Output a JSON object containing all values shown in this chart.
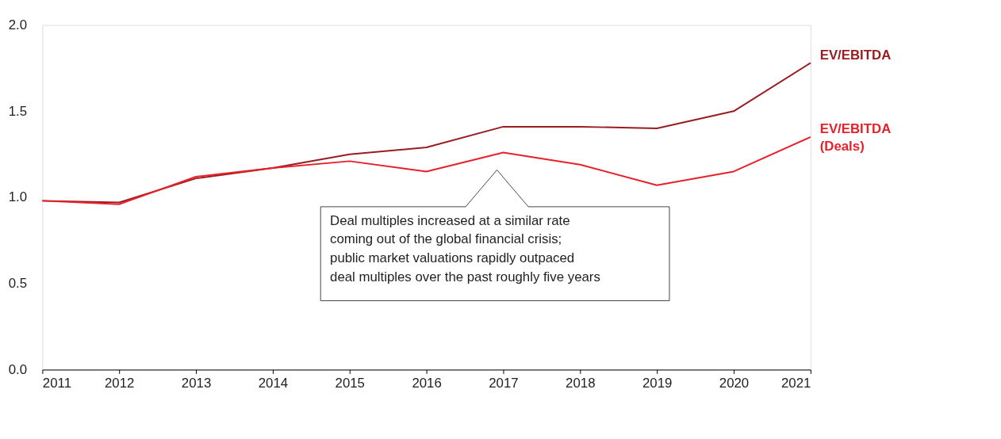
{
  "chart_data": {
    "type": "line",
    "categories": [
      "2011",
      "2012",
      "2013",
      "2014",
      "2015",
      "2016",
      "2017",
      "2018",
      "2019",
      "2020",
      "2021"
    ],
    "series": [
      {
        "name": "EV/EBITDA",
        "color": "#9b1c20",
        "values": [
          0.98,
          0.97,
          1.11,
          1.17,
          1.25,
          1.29,
          1.41,
          1.41,
          1.4,
          1.5,
          1.78
        ]
      },
      {
        "name": "EV/EBITDA (Deals)",
        "color": "#e8202a",
        "values": [
          0.98,
          0.96,
          1.12,
          1.17,
          1.21,
          1.15,
          1.26,
          1.19,
          1.07,
          1.15,
          1.35
        ]
      }
    ],
    "ylim": [
      0,
      2.0
    ],
    "yticks": [
      {
        "value": 0,
        "label": "0.0"
      },
      {
        "value": 0.5,
        "label": "0.5"
      },
      {
        "value": 1,
        "label": "1.0"
      },
      {
        "value": 1.5,
        "label": "1.5"
      },
      {
        "value": 2,
        "label": "2.0"
      }
    ],
    "grid": false,
    "legend": false,
    "marker": "none",
    "line_style": "solid",
    "annotations": [
      "Deal multiples increased at a similar rate\ncoming out of the global financial crisis;\npublic market valuations rapidly outpaced\ndeal multiples over the past roughly five years"
    ]
  }
}
